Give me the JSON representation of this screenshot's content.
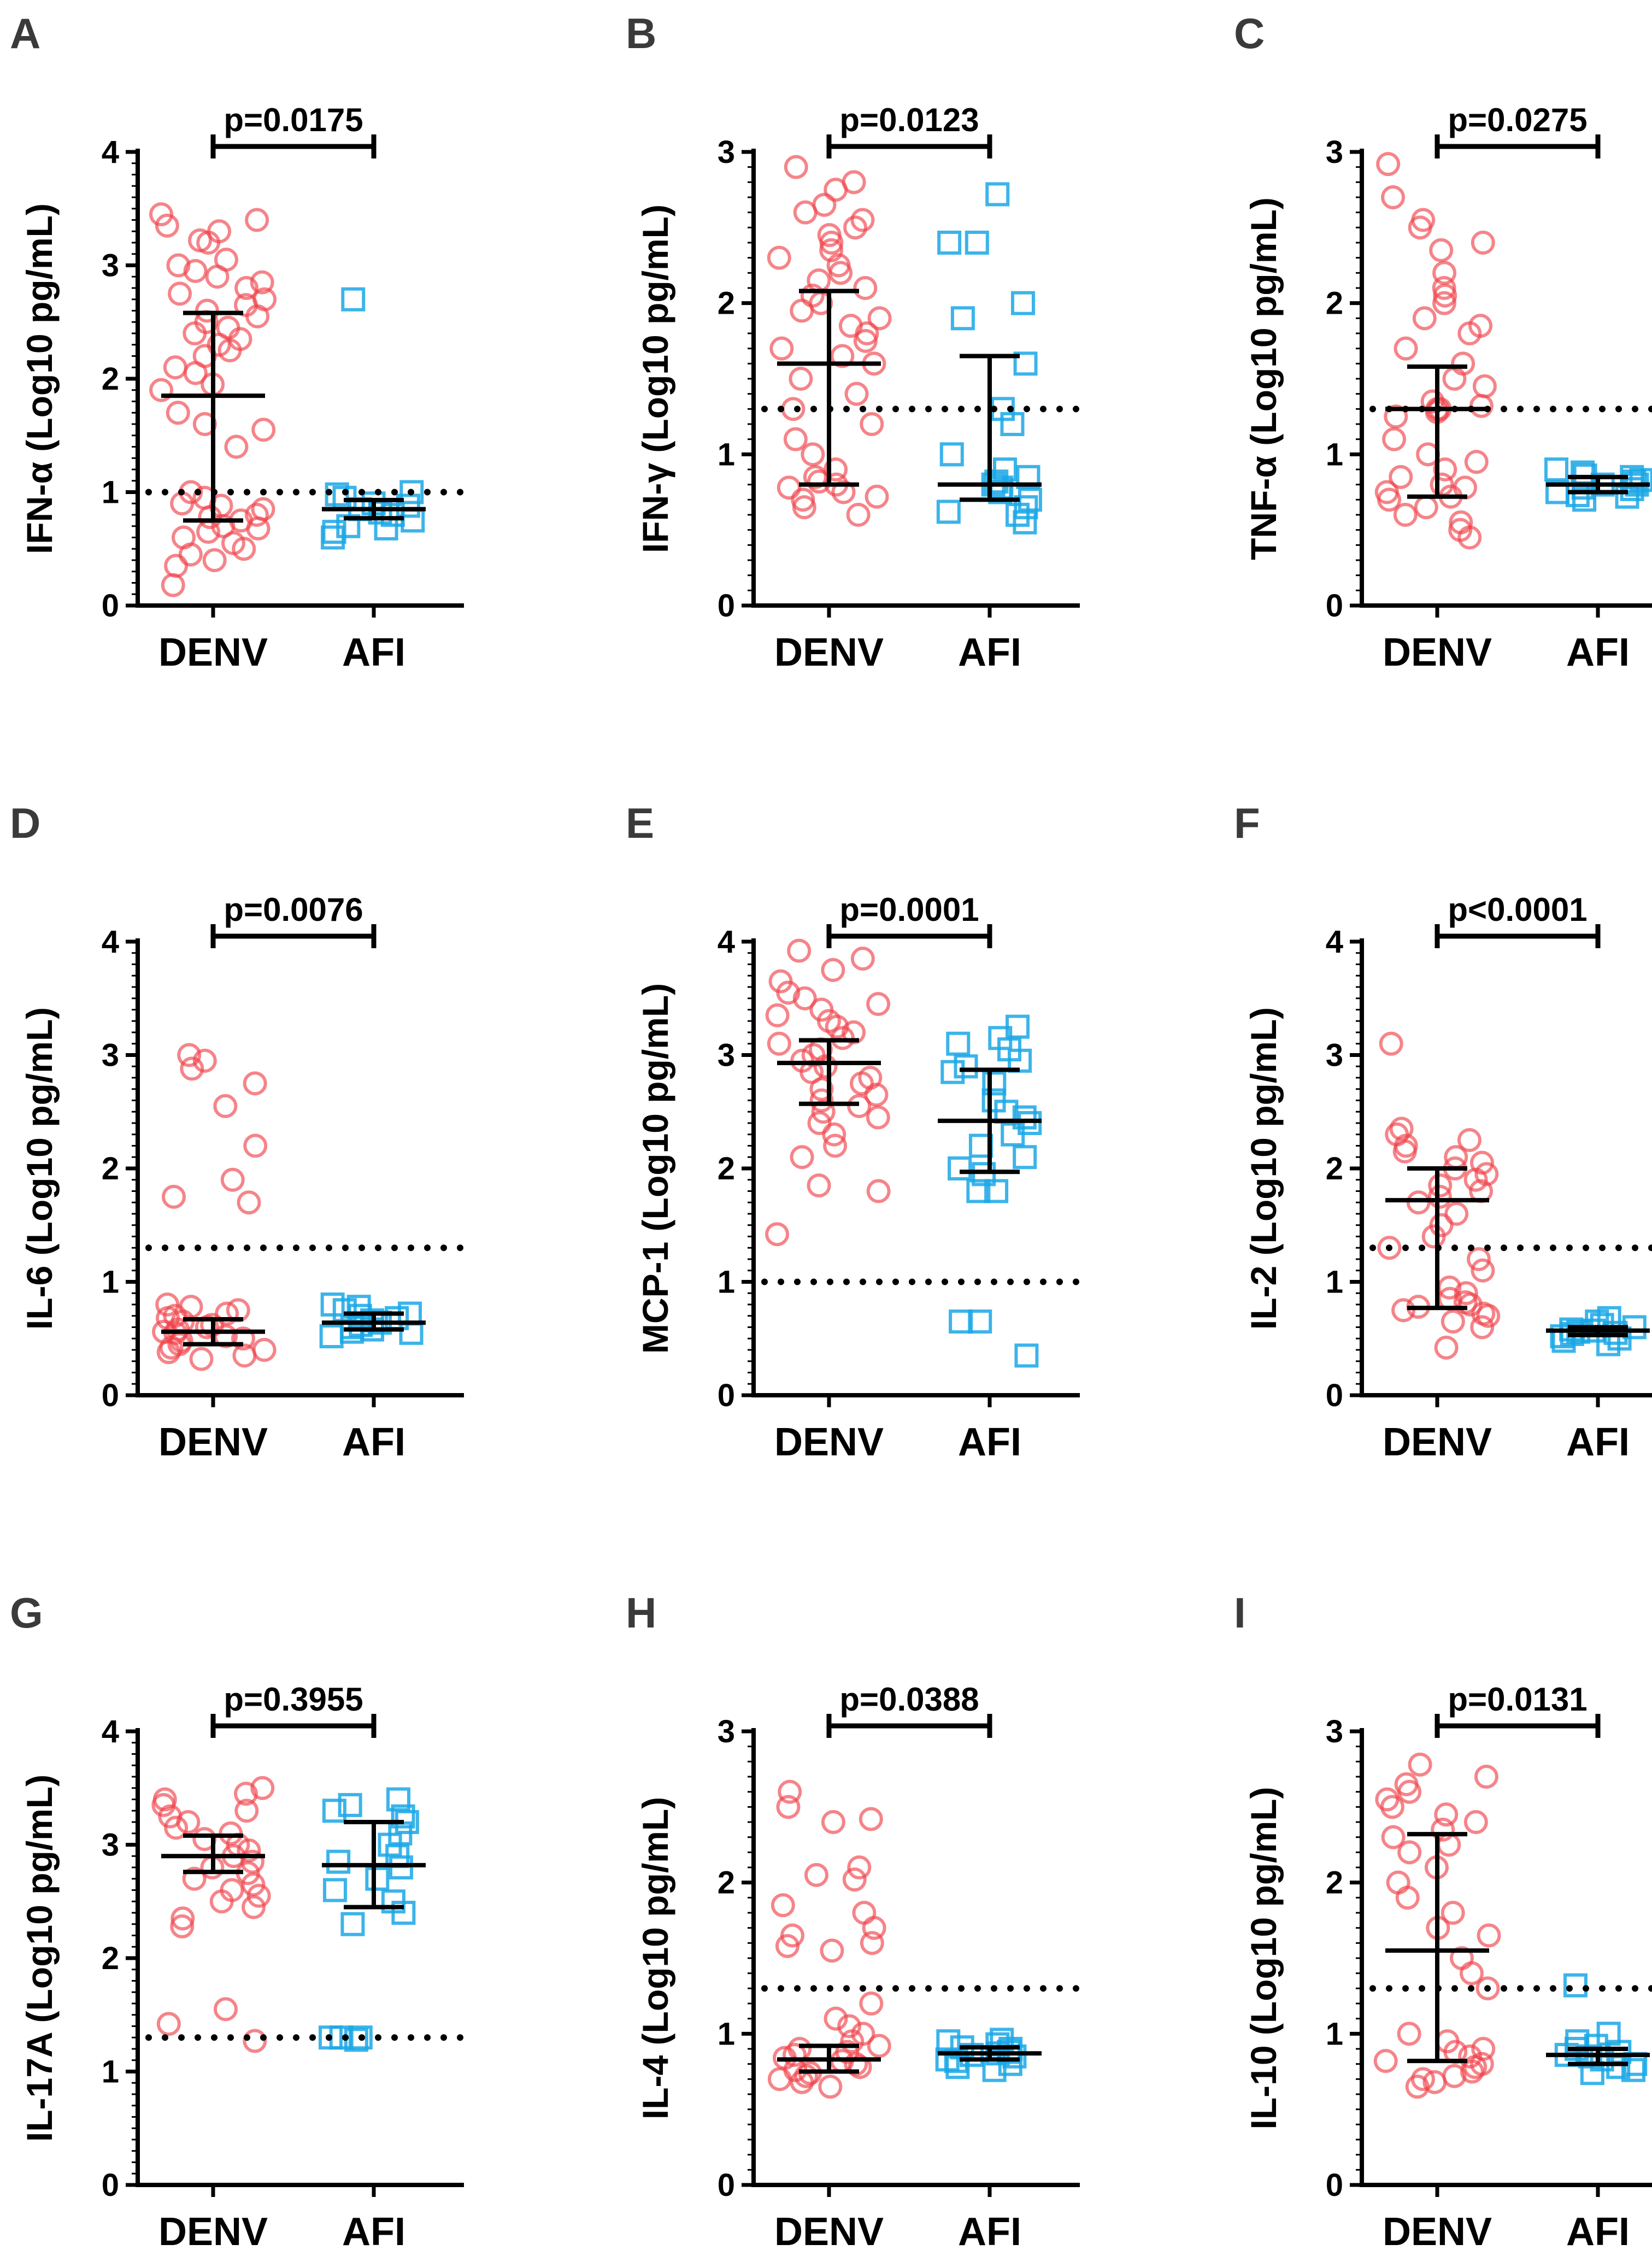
{
  "colors": {
    "denv": "#f0424a",
    "afi": "#1aa7e6",
    "axis": "#000000"
  },
  "chart_data": [
    {
      "type": "scatter",
      "panel": "A",
      "ylabel": "IFN-α (Log10 pg/mL)",
      "categories": [
        "DENV",
        "AFI"
      ],
      "ylim": [
        0,
        4
      ],
      "yticks": [
        0,
        1,
        2,
        3,
        4
      ],
      "threshold": 1.0,
      "pvalue": "p=0.0175",
      "denv": {
        "median": 1.85,
        "q1": 0.75,
        "q3": 2.58,
        "values": [
          3.45,
          3.4,
          3.35,
          3.3,
          3.22,
          3.2,
          3.05,
          3.0,
          2.95,
          2.9,
          2.85,
          2.8,
          2.75,
          2.7,
          2.65,
          2.6,
          2.55,
          2.5,
          2.45,
          2.4,
          2.35,
          2.3,
          2.25,
          2.2,
          2.1,
          2.05,
          1.95,
          1.9,
          1.7,
          1.6,
          1.55,
          1.4,
          1.0,
          0.95,
          0.9,
          0.88,
          0.85,
          0.8,
          0.78,
          0.75,
          0.7,
          0.68,
          0.65,
          0.6,
          0.55,
          0.5,
          0.45,
          0.4,
          0.35,
          0.18
        ]
      },
      "afi": {
        "median": 0.85,
        "q1": 0.77,
        "q3": 0.93,
        "values": [
          2.7,
          1.0,
          0.98,
          0.95,
          0.9,
          0.88,
          0.85,
          0.82,
          0.8,
          0.75,
          0.7,
          0.68,
          0.65,
          0.6
        ]
      }
    },
    {
      "type": "scatter",
      "panel": "B",
      "ylabel": "IFN-γ (Log10 pg/mL)",
      "categories": [
        "DENV",
        "AFI"
      ],
      "ylim": [
        0,
        3
      ],
      "yticks": [
        0,
        1,
        2,
        3
      ],
      "threshold": 1.3,
      "pvalue": "p=0.0123",
      "denv": {
        "median": 1.6,
        "q1": 0.8,
        "q3": 2.08,
        "values": [
          2.9,
          2.8,
          2.75,
          2.65,
          2.6,
          2.55,
          2.5,
          2.45,
          2.4,
          2.35,
          2.3,
          2.25,
          2.2,
          2.15,
          2.1,
          2.05,
          2.0,
          1.95,
          1.9,
          1.85,
          1.8,
          1.75,
          1.7,
          1.65,
          1.6,
          1.5,
          1.4,
          1.3,
          1.2,
          1.1,
          1.0,
          0.9,
          0.85,
          0.82,
          0.8,
          0.78,
          0.75,
          0.72,
          0.7,
          0.65,
          0.6
        ]
      },
      "afi": {
        "median": 0.8,
        "q1": 0.7,
        "q3": 1.65,
        "values": [
          2.72,
          2.4,
          2.4,
          2.0,
          1.9,
          1.6,
          1.3,
          1.2,
          1.0,
          0.9,
          0.85,
          0.82,
          0.8,
          0.78,
          0.75,
          0.7,
          0.65,
          0.62,
          0.6,
          0.55
        ]
      }
    },
    {
      "type": "scatter",
      "panel": "C",
      "ylabel": "TNF-α (Log10 pg/mL)",
      "categories": [
        "DENV",
        "AFI"
      ],
      "ylim": [
        0,
        3
      ],
      "yticks": [
        0,
        1,
        2,
        3
      ],
      "threshold": 1.3,
      "pvalue": "p=0.0275",
      "denv": {
        "median": 1.3,
        "q1": 0.72,
        "q3": 1.58,
        "values": [
          2.92,
          2.7,
          2.55,
          2.5,
          2.4,
          2.35,
          2.2,
          2.1,
          2.05,
          2.0,
          1.9,
          1.85,
          1.8,
          1.7,
          1.6,
          1.5,
          1.45,
          1.35,
          1.32,
          1.3,
          1.3,
          1.28,
          1.25,
          1.1,
          1.0,
          0.95,
          0.9,
          0.85,
          0.8,
          0.78,
          0.75,
          0.72,
          0.7,
          0.65,
          0.6,
          0.55,
          0.5,
          0.45
        ]
      },
      "afi": {
        "median": 0.8,
        "q1": 0.75,
        "q3": 0.85,
        "values": [
          0.9,
          0.88,
          0.86,
          0.85,
          0.83,
          0.82,
          0.8,
          0.8,
          0.78,
          0.77,
          0.75,
          0.73,
          0.72,
          0.7
        ]
      }
    },
    {
      "type": "scatter",
      "panel": "D",
      "ylabel": "IL-6 (Log10 pg/mL)",
      "categories": [
        "DENV",
        "AFI"
      ],
      "ylim": [
        0,
        4
      ],
      "yticks": [
        0,
        1,
        2,
        3,
        4
      ],
      "threshold": 1.3,
      "pvalue": "p=0.0076",
      "denv": {
        "median": 0.56,
        "q1": 0.45,
        "q3": 0.67,
        "values": [
          3.0,
          2.95,
          2.88,
          2.75,
          2.55,
          2.2,
          1.9,
          1.75,
          1.7,
          0.8,
          0.78,
          0.75,
          0.72,
          0.7,
          0.68,
          0.65,
          0.62,
          0.6,
          0.58,
          0.56,
          0.55,
          0.52,
          0.5,
          0.48,
          0.45,
          0.42,
          0.4,
          0.38,
          0.35,
          0.32
        ]
      },
      "afi": {
        "median": 0.64,
        "q1": 0.58,
        "q3": 0.72,
        "values": [
          0.8,
          0.78,
          0.75,
          0.72,
          0.7,
          0.68,
          0.66,
          0.64,
          0.62,
          0.6,
          0.58,
          0.56,
          0.55,
          0.52
        ]
      }
    },
    {
      "type": "scatter",
      "panel": "E",
      "ylabel": "MCP-1 (Log10 pg/mL)",
      "categories": [
        "DENV",
        "AFI"
      ],
      "ylim": [
        0,
        4
      ],
      "yticks": [
        0,
        1,
        2,
        3,
        4
      ],
      "threshold": 1.0,
      "pvalue": "p=0.0001",
      "denv": {
        "median": 2.93,
        "q1": 2.57,
        "q3": 3.13,
        "values": [
          3.92,
          3.85,
          3.75,
          3.65,
          3.55,
          3.5,
          3.45,
          3.4,
          3.35,
          3.3,
          3.25,
          3.2,
          3.15,
          3.1,
          3.05,
          3.0,
          2.95,
          2.9,
          2.85,
          2.8,
          2.75,
          2.7,
          2.65,
          2.6,
          2.55,
          2.5,
          2.45,
          2.4,
          2.3,
          2.2,
          2.1,
          1.85,
          1.8,
          1.42
        ]
      },
      "afi": {
        "median": 2.42,
        "q1": 1.97,
        "q3": 2.87,
        "values": [
          3.25,
          3.15,
          3.1,
          3.05,
          2.95,
          2.9,
          2.85,
          2.75,
          2.6,
          2.5,
          2.45,
          2.4,
          2.3,
          2.2,
          2.1,
          2.0,
          1.95,
          1.8,
          1.8,
          0.65,
          0.65,
          0.35
        ]
      }
    },
    {
      "type": "scatter",
      "panel": "F",
      "ylabel": "IL-2 (Log10 pg/mL)",
      "categories": [
        "DENV",
        "AFI"
      ],
      "ylim": [
        0,
        4
      ],
      "yticks": [
        0,
        1,
        2,
        3,
        4
      ],
      "threshold": 1.3,
      "pvalue": "p<0.0001",
      "denv": {
        "median": 1.72,
        "q1": 0.77,
        "q3": 2.0,
        "values": [
          3.1,
          2.35,
          2.3,
          2.25,
          2.2,
          2.15,
          2.1,
          2.05,
          2.0,
          1.95,
          1.9,
          1.85,
          1.8,
          1.75,
          1.7,
          1.6,
          1.5,
          1.4,
          1.3,
          1.2,
          1.1,
          0.95,
          0.9,
          0.85,
          0.82,
          0.8,
          0.78,
          0.75,
          0.72,
          0.7,
          0.65,
          0.6,
          0.42
        ]
      },
      "afi": {
        "median": 0.57,
        "q1": 0.53,
        "q3": 0.6,
        "values": [
          0.68,
          0.65,
          0.62,
          0.6,
          0.58,
          0.57,
          0.56,
          0.55,
          0.54,
          0.52,
          0.5,
          0.48,
          0.45
        ]
      }
    },
    {
      "type": "scatter",
      "panel": "G",
      "ylabel": "IL-17A (Log10 pg/mL)",
      "categories": [
        "DENV",
        "AFI"
      ],
      "ylim": [
        0,
        4
      ],
      "yticks": [
        0,
        1,
        2,
        3,
        4
      ],
      "threshold": 1.3,
      "pvalue": "p=0.3955",
      "denv": {
        "median": 2.9,
        "q1": 2.76,
        "q3": 3.08,
        "values": [
          3.5,
          3.45,
          3.4,
          3.35,
          3.3,
          3.25,
          3.2,
          3.15,
          3.1,
          3.05,
          3.0,
          2.95,
          2.9,
          2.85,
          2.8,
          2.75,
          2.7,
          2.65,
          2.6,
          2.55,
          2.5,
          2.45,
          2.35,
          2.28,
          1.55,
          1.42,
          1.27
        ]
      },
      "afi": {
        "median": 2.82,
        "q1": 2.45,
        "q3": 3.2,
        "values": [
          3.4,
          3.35,
          3.3,
          3.25,
          3.2,
          3.1,
          3.0,
          2.9,
          2.85,
          2.8,
          2.7,
          2.6,
          2.5,
          2.4,
          2.3,
          1.3,
          1.3,
          1.3,
          1.28
        ]
      }
    },
    {
      "type": "scatter",
      "panel": "H",
      "ylabel": "IL-4 (Log10 pg/mL)",
      "categories": [
        "DENV",
        "AFI"
      ],
      "ylim": [
        0,
        3
      ],
      "yticks": [
        0,
        1,
        2,
        3
      ],
      "threshold": 1.3,
      "pvalue": "p=0.0388",
      "denv": {
        "median": 0.83,
        "q1": 0.75,
        "q3": 0.92,
        "values": [
          2.6,
          2.5,
          2.42,
          2.4,
          2.1,
          2.05,
          2.02,
          1.85,
          1.8,
          1.7,
          1.65,
          1.6,
          1.58,
          1.55,
          1.2,
          1.1,
          1.05,
          1.0,
          0.95,
          0.92,
          0.9,
          0.88,
          0.86,
          0.84,
          0.82,
          0.8,
          0.78,
          0.76,
          0.74,
          0.72,
          0.7,
          0.68,
          0.65
        ]
      },
      "afi": {
        "median": 0.87,
        "q1": 0.83,
        "q3": 0.91,
        "values": [
          0.96,
          0.95,
          0.93,
          0.91,
          0.9,
          0.88,
          0.87,
          0.86,
          0.85,
          0.83,
          0.82,
          0.8,
          0.78,
          0.76
        ]
      }
    },
    {
      "type": "scatter",
      "panel": "I",
      "ylabel": "IL-10 (Log10 pg/mL)",
      "categories": [
        "DENV",
        "AFI"
      ],
      "ylim": [
        0,
        3
      ],
      "yticks": [
        0,
        1,
        2,
        3
      ],
      "threshold": 1.3,
      "pvalue": "p=0.0131",
      "denv": {
        "median": 1.55,
        "q1": 0.82,
        "q3": 2.32,
        "values": [
          2.78,
          2.7,
          2.65,
          2.6,
          2.55,
          2.5,
          2.45,
          2.4,
          2.35,
          2.3,
          2.25,
          2.2,
          2.1,
          2.0,
          1.9,
          1.8,
          1.7,
          1.65,
          1.5,
          1.4,
          1.3,
          1.0,
          0.95,
          0.9,
          0.88,
          0.85,
          0.82,
          0.8,
          0.78,
          0.75,
          0.72,
          0.7,
          0.68,
          0.65
        ]
      },
      "afi": {
        "median": 0.86,
        "q1": 0.8,
        "q3": 0.9,
        "values": [
          1.32,
          1.0,
          0.95,
          0.92,
          0.9,
          0.88,
          0.86,
          0.85,
          0.83,
          0.8,
          0.78,
          0.76,
          0.74
        ]
      }
    }
  ]
}
